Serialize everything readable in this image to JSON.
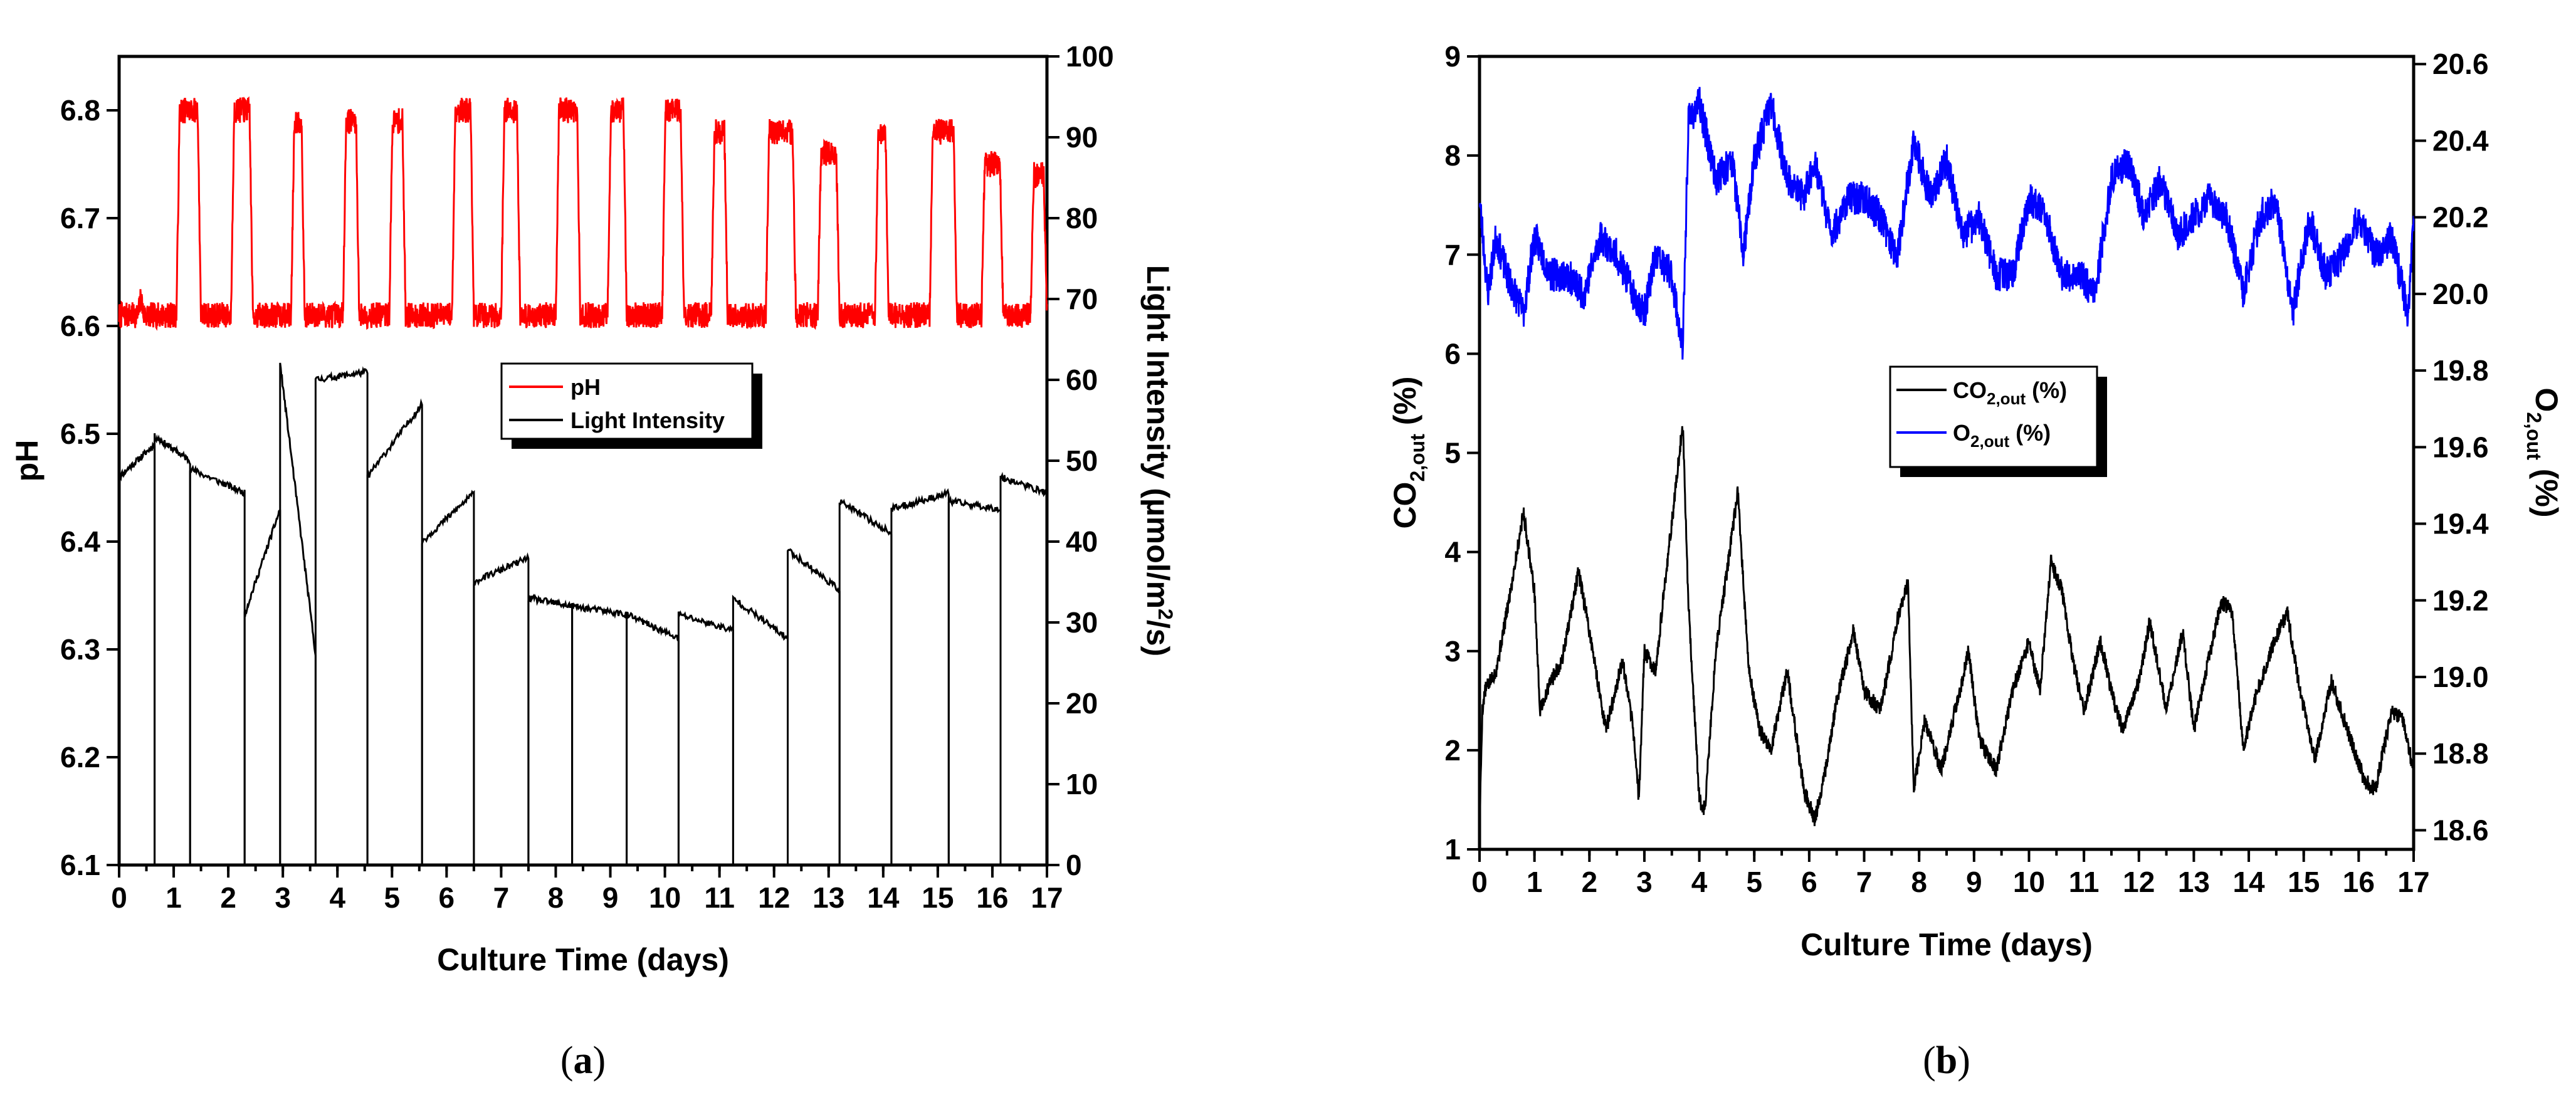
{
  "panels": [
    {
      "caption": "a",
      "chart_data": {
        "type": "line",
        "title": "",
        "xlabel": "Culture Time (days)",
        "ylabel_left": "pH",
        "ylabel_right": "Light Intensity (µmol/m²/s)",
        "ylabel_right_parts": {
          "pre": "Light Intensity (µmol/m",
          "sup": "2",
          "post": "/s)"
        },
        "xlim": [
          0,
          17
        ],
        "xticks": [
          0,
          1,
          2,
          3,
          4,
          5,
          6,
          7,
          8,
          9,
          10,
          11,
          12,
          13,
          14,
          15,
          16,
          17
        ],
        "x_minor_step": 0.5,
        "ylim_left": [
          6.1,
          6.85
        ],
        "yticks_left": [
          6.1,
          6.2,
          6.3,
          6.4,
          6.5,
          6.6,
          6.7,
          6.8
        ],
        "yticks_left_labels": [
          "6.1",
          "6.2",
          "6.3",
          "6.4",
          "6.5",
          "6.6",
          "6.7",
          "6.8"
        ],
        "ylim_right": [
          0,
          100
        ],
        "yticks_right": [
          0,
          10,
          20,
          30,
          40,
          50,
          60,
          70,
          80,
          90,
          100
        ],
        "legend": [
          {
            "label": "pH",
            "color": "#ff0000"
          },
          {
            "label": "Light Intensity",
            "color": "#000000"
          }
        ],
        "series": [
          {
            "name": "pH",
            "axis": "left",
            "color": "#ff0000",
            "style": "diel",
            "baseline": 6.61,
            "day_start": [
              0.35,
              1.05,
              2.05,
              3.15,
              4.1,
              4.95,
              6.1,
              7.0,
              8.0,
              8.95,
              9.95,
              10.85,
              11.85,
              12.8,
              13.85,
              14.85,
              15.8,
              16.7
            ],
            "day_end": [
              0.45,
              1.5,
              2.45,
              3.4,
              4.4,
              5.25,
              6.5,
              7.35,
              8.45,
              9.3,
              10.35,
              11.15,
              12.4,
              13.2,
              14.1,
              15.35,
              16.2,
              17.0
            ],
            "plateau": [
              6.63,
              6.8,
              6.8,
              6.79,
              6.79,
              6.79,
              6.8,
              6.8,
              6.8,
              6.8,
              6.8,
              6.78,
              6.78,
              6.76,
              6.78,
              6.78,
              6.75,
              6.74
            ],
            "noise": 0.012
          },
          {
            "name": "Light Intensity",
            "axis": "right",
            "color": "#000000",
            "style": "steps",
            "step_days": [
              0.0,
              0.65,
              1.3,
              2.3,
              2.95,
              3.6,
              4.55,
              5.55,
              6.5,
              7.5,
              8.3,
              9.3,
              10.25,
              11.25,
              12.25,
              13.2,
              14.15,
              15.2,
              16.15
            ],
            "end_day": 17.0,
            "start_values": [
              48,
              53,
              49,
              31,
              62,
              60,
              48,
              40,
              35,
              33,
              32,
              31,
              31,
              33,
              39,
              45,
              44,
              45,
              48
            ],
            "end_values": [
              52,
              50,
              46,
              44,
              26,
              61,
              57,
              46,
              38,
              32,
              31,
              28,
              29,
              28,
              34,
              41,
              46,
              44,
              46
            ]
          }
        ]
      }
    },
    {
      "caption": "b",
      "chart_data": {
        "type": "line",
        "title": "",
        "xlabel": "Culture Time (days)",
        "ylabel_left": "CO2,out (%)",
        "ylabel_left_parts": {
          "pre": "CO",
          "sub": "2,out",
          "post": " (%)"
        },
        "ylabel_right": "O2,out (%)",
        "ylabel_right_parts": {
          "pre": "O",
          "sub": "2,out",
          "post": " (%)"
        },
        "xlim": [
          0,
          17
        ],
        "xticks": [
          0,
          1,
          2,
          3,
          4,
          5,
          6,
          7,
          8,
          9,
          10,
          11,
          12,
          13,
          14,
          15,
          16,
          17
        ],
        "x_minor_step": 0.5,
        "ylim_left": [
          1,
          9
        ],
        "yticks_left": [
          1,
          2,
          3,
          4,
          5,
          6,
          7,
          8,
          9
        ],
        "ylim_right": [
          18.55,
          20.62
        ],
        "yticks_right": [
          18.6,
          18.8,
          19.0,
          19.2,
          19.4,
          19.6,
          19.8,
          20.0,
          20.2,
          20.4,
          20.6
        ],
        "yticks_right_labels": [
          "18.6",
          "18.8",
          "19.0",
          "19.2",
          "19.4",
          "19.6",
          "19.8",
          "20.0",
          "20.2",
          "20.4",
          "20.6"
        ],
        "legend": [
          {
            "label": "CO2,out (%)",
            "pre": "CO",
            "sub": "2,out",
            "post": " (%)",
            "color": "#000000"
          },
          {
            "label": "O2,out (%)",
            "pre": "O",
            "sub": "2,out",
            "post": " (%)",
            "color": "#0000ff"
          }
        ],
        "series": [
          {
            "name": "CO2,out (%)",
            "axis": "left",
            "color": "#000000",
            "style": "line",
            "x": [
              0,
              0.05,
              0.1,
              0.3,
              0.5,
              0.8,
              1.0,
              1.1,
              1.3,
              1.5,
              1.8,
              2.0,
              2.3,
              2.6,
              2.8,
              2.9,
              3.0,
              3.2,
              3.5,
              3.7,
              3.8,
              4.0,
              4.1,
              4.3,
              4.5,
              4.7,
              4.9,
              5.1,
              5.3,
              5.6,
              5.9,
              6.1,
              6.3,
              6.5,
              6.8,
              7.0,
              7.3,
              7.6,
              7.8,
              7.9,
              8.1,
              8.4,
              8.7,
              8.9,
              9.1,
              9.4,
              9.7,
              10.0,
              10.2,
              10.4,
              10.6,
              10.8,
              11.0,
              11.3,
              11.5,
              11.7,
              12.0,
              12.2,
              12.5,
              12.8,
              13.0,
              13.3,
              13.5,
              13.7,
              13.9,
              14.1,
              14.4,
              14.7,
              14.9,
              15.2,
              15.5,
              15.8,
              16.1,
              16.3,
              16.6,
              16.8,
              17.0
            ],
            "y": [
              1.2,
              2.4,
              2.6,
              2.8,
              3.4,
              4.4,
              3.6,
              2.4,
              2.7,
              2.9,
              3.8,
              3.2,
              2.2,
              2.9,
              2.2,
              1.5,
              3.0,
              2.8,
              4.3,
              5.3,
              3.5,
              1.5,
              1.4,
              3.0,
              3.8,
              4.6,
              2.8,
              2.2,
              2.0,
              2.8,
              1.6,
              1.3,
              1.8,
              2.5,
              3.2,
              2.6,
              2.4,
              3.3,
              3.7,
              1.6,
              2.3,
              1.8,
              2.5,
              3.0,
              2.1,
              1.8,
              2.6,
              3.1,
              2.6,
              3.9,
              3.6,
              2.9,
              2.4,
              3.1,
              2.6,
              2.2,
              2.7,
              3.3,
              2.4,
              3.2,
              2.2,
              3.0,
              3.5,
              3.4,
              2.0,
              2.5,
              3.0,
              3.4,
              2.7,
              1.9,
              2.7,
              2.2,
              1.7,
              1.6,
              2.4,
              2.3,
              1.8
            ],
            "noise": 0.08
          },
          {
            "name": "O2,out (%)",
            "axis": "right",
            "color": "#0000ff",
            "style": "line",
            "x": [
              0,
              0.15,
              0.3,
              0.5,
              0.8,
              1.0,
              1.3,
              1.6,
              1.9,
              2.2,
              2.5,
              2.8,
              3.0,
              3.2,
              3.5,
              3.7,
              3.8,
              4.0,
              4.3,
              4.6,
              4.8,
              5.0,
              5.3,
              5.6,
              5.9,
              6.1,
              6.4,
              6.7,
              7.0,
              7.3,
              7.6,
              7.9,
              8.2,
              8.5,
              8.8,
              9.1,
              9.4,
              9.7,
              10.0,
              10.3,
              10.6,
              10.9,
              11.2,
              11.5,
              11.8,
              12.1,
              12.4,
              12.7,
              13.0,
              13.3,
              13.6,
              13.9,
              14.2,
              14.5,
              14.8,
              15.1,
              15.4,
              15.7,
              16.0,
              16.3,
              16.6,
              16.9,
              17.0
            ],
            "y": [
              20.25,
              20.0,
              20.15,
              20.05,
              19.95,
              20.15,
              20.05,
              20.05,
              20.0,
              20.15,
              20.1,
              20.0,
              19.95,
              20.1,
              20.05,
              19.85,
              20.45,
              20.5,
              20.3,
              20.35,
              20.1,
              20.35,
              20.5,
              20.3,
              20.25,
              20.35,
              20.15,
              20.25,
              20.25,
              20.2,
              20.1,
              20.4,
              20.25,
              20.35,
              20.15,
              20.2,
              20.05,
              20.05,
              20.25,
              20.2,
              20.05,
              20.05,
              20.0,
              20.3,
              20.35,
              20.2,
              20.3,
              20.15,
              20.2,
              20.25,
              20.2,
              20.0,
              20.2,
              20.25,
              19.95,
              20.2,
              20.05,
              20.1,
              20.2,
              20.1,
              20.15,
              19.95,
              20.2
            ],
            "noise": 0.045
          }
        ]
      }
    }
  ]
}
